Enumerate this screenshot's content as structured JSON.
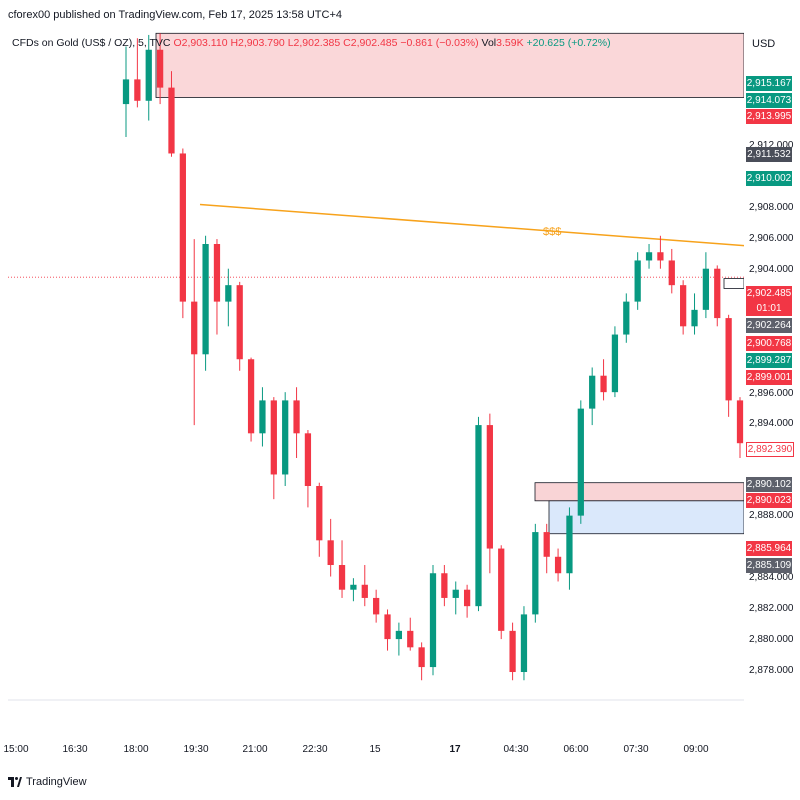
{
  "publisher_line": "cforex00 published on TradingView.com, Feb 17, 2025 13:58 UTC+4",
  "header": {
    "symbol": "CFDs on Gold (US$ / OZ), 5, TVC",
    "open": "O2,903.110",
    "high": "H2,903.790",
    "low": "L2,902.385",
    "close": "C2,902.485",
    "change": "−0.861 (−0.03%)",
    "volume_label": "Vol",
    "volume": "3.59K",
    "vol_change": "+20.625 (+0.72%)"
  },
  "currency": "USD",
  "annotation_text": "$$$",
  "price_axis_ticks": [
    "2,912.000",
    "2,908.000",
    "2,906.000",
    "2,904.000",
    "2,896.000",
    "2,894.000",
    "2,888.000",
    "2,884.000",
    "2,882.000",
    "2,880.000",
    "2,878.000"
  ],
  "price_labels": [
    {
      "text": "2,915.167",
      "color": "#089981"
    },
    {
      "text": "2,914.073",
      "color": "#089981"
    },
    {
      "text": "2,913.995",
      "color": "#f23645"
    },
    {
      "text": "2,911.532",
      "color": "#4a4e59"
    },
    {
      "text": "2,910.002",
      "color": "#089981"
    },
    {
      "text": "2,902.485",
      "color": "#f23645"
    },
    {
      "text": "01:01",
      "color": "#f23645"
    },
    {
      "text": "2,902.264",
      "color": "#5d606b"
    },
    {
      "text": "2,900.768",
      "color": "#f23645"
    },
    {
      "text": "2,899.287",
      "color": "#089981"
    },
    {
      "text": "2,899.001",
      "color": "#f23645"
    },
    {
      "text": "2,892.390",
      "color": "#ffffff"
    },
    {
      "text": "2,890.102",
      "color": "#5d606b"
    },
    {
      "text": "2,890.023",
      "color": "#f23645"
    },
    {
      "text": "2,885.964",
      "color": "#f23645"
    },
    {
      "text": "2,885.109",
      "color": "#5d606b"
    }
  ],
  "time_ticks": [
    "15:00",
    "16:30",
    "18:00",
    "19:30",
    "21:00",
    "22:30",
    "15",
    "17",
    "04:30",
    "06:00",
    "07:30",
    "09:00"
  ],
  "brand": "TradingView",
  "colors": {
    "up": "#089981",
    "down": "#f23645",
    "trendline": "#f7a21b",
    "supply_zone": "#f8c9cc",
    "demand_zone": "#d6e6fb"
  },
  "chart_data": {
    "type": "candlestick",
    "ylim": [
      2876.8,
      2917.5
    ],
    "bars": [
      {
        "o": 2913.0,
        "h": 2916.5,
        "l": 2911.0,
        "c": 2914.5
      },
      {
        "o": 2914.5,
        "h": 2917.0,
        "l": 2912.8,
        "c": 2913.2
      },
      {
        "o": 2913.2,
        "h": 2917.2,
        "l": 2912.0,
        "c": 2916.3
      },
      {
        "o": 2916.3,
        "h": 2917.3,
        "l": 2913.0,
        "c": 2914.0
      },
      {
        "o": 2914.0,
        "h": 2915.0,
        "l": 2909.8,
        "c": 2910.0
      },
      {
        "o": 2910.0,
        "h": 2910.3,
        "l": 2900.0,
        "c": 2901.0
      },
      {
        "o": 2901.0,
        "h": 2904.8,
        "l": 2893.5,
        "c": 2897.8
      },
      {
        "o": 2897.8,
        "h": 2905.0,
        "l": 2896.8,
        "c": 2904.5
      },
      {
        "o": 2904.5,
        "h": 2904.8,
        "l": 2899.0,
        "c": 2901.0
      },
      {
        "o": 2901.0,
        "h": 2903.0,
        "l": 2899.5,
        "c": 2902.0
      },
      {
        "o": 2902.0,
        "h": 2902.2,
        "l": 2896.8,
        "c": 2897.5
      },
      {
        "o": 2897.5,
        "h": 2897.6,
        "l": 2892.5,
        "c": 2893.0
      },
      {
        "o": 2893.0,
        "h": 2895.8,
        "l": 2892.2,
        "c": 2895.0
      },
      {
        "o": 2895.0,
        "h": 2895.2,
        "l": 2889.0,
        "c": 2890.5
      },
      {
        "o": 2890.5,
        "h": 2895.5,
        "l": 2889.8,
        "c": 2895.0
      },
      {
        "o": 2895.0,
        "h": 2895.8,
        "l": 2891.5,
        "c": 2893.0
      },
      {
        "o": 2893.0,
        "h": 2893.2,
        "l": 2888.5,
        "c": 2889.8
      },
      {
        "o": 2889.8,
        "h": 2890.0,
        "l": 2885.5,
        "c": 2886.5
      },
      {
        "o": 2886.5,
        "h": 2887.8,
        "l": 2884.3,
        "c": 2885.0
      },
      {
        "o": 2885.0,
        "h": 2886.5,
        "l": 2883.0,
        "c": 2883.5
      },
      {
        "o": 2883.5,
        "h": 2884.2,
        "l": 2882.8,
        "c": 2883.8
      },
      {
        "o": 2883.8,
        "h": 2885.0,
        "l": 2882.5,
        "c": 2883.0
      },
      {
        "o": 2883.0,
        "h": 2883.5,
        "l": 2881.5,
        "c": 2882.0
      },
      {
        "o": 2882.0,
        "h": 2882.3,
        "l": 2879.8,
        "c": 2880.5
      },
      {
        "o": 2880.5,
        "h": 2881.5,
        "l": 2879.5,
        "c": 2881.0
      },
      {
        "o": 2881.0,
        "h": 2881.8,
        "l": 2879.8,
        "c": 2880.0
      },
      {
        "o": 2880.0,
        "h": 2880.3,
        "l": 2878.0,
        "c": 2878.8
      },
      {
        "o": 2878.8,
        "h": 2885.0,
        "l": 2878.3,
        "c": 2884.5
      },
      {
        "o": 2884.5,
        "h": 2885.0,
        "l": 2882.5,
        "c": 2883.0
      },
      {
        "o": 2883.0,
        "h": 2884.0,
        "l": 2882.0,
        "c": 2883.5
      },
      {
        "o": 2883.5,
        "h": 2883.8,
        "l": 2881.8,
        "c": 2882.5
      },
      {
        "o": 2882.5,
        "h": 2894.0,
        "l": 2882.2,
        "c": 2893.5
      },
      {
        "o": 2893.5,
        "h": 2894.2,
        "l": 2884.5,
        "c": 2886.0
      },
      {
        "o": 2886.0,
        "h": 2886.2,
        "l": 2880.5,
        "c": 2881.0
      },
      {
        "o": 2881.0,
        "h": 2881.5,
        "l": 2878.0,
        "c": 2878.5
      },
      {
        "o": 2878.5,
        "h": 2882.5,
        "l": 2878.0,
        "c": 2882.0
      },
      {
        "o": 2882.0,
        "h": 2887.5,
        "l": 2881.5,
        "c": 2887.0
      },
      {
        "o": 2887.0,
        "h": 2887.5,
        "l": 2884.5,
        "c": 2885.5
      },
      {
        "o": 2885.5,
        "h": 2886.0,
        "l": 2884.0,
        "c": 2884.5
      },
      {
        "o": 2884.5,
        "h": 2888.5,
        "l": 2883.5,
        "c": 2888.0
      },
      {
        "o": 2888.0,
        "h": 2895.0,
        "l": 2887.5,
        "c": 2894.5
      },
      {
        "o": 2894.5,
        "h": 2897.0,
        "l": 2893.5,
        "c": 2896.5
      },
      {
        "o": 2896.5,
        "h": 2897.5,
        "l": 2895.0,
        "c": 2895.5
      },
      {
        "o": 2895.5,
        "h": 2899.5,
        "l": 2895.2,
        "c": 2899.0
      },
      {
        "o": 2899.0,
        "h": 2901.5,
        "l": 2898.5,
        "c": 2901.0
      },
      {
        "o": 2901.0,
        "h": 2904.0,
        "l": 2900.5,
        "c": 2903.5
      },
      {
        "o": 2903.5,
        "h": 2904.5,
        "l": 2903.0,
        "c": 2904.0
      },
      {
        "o": 2904.0,
        "h": 2905.0,
        "l": 2903.0,
        "c": 2903.5
      },
      {
        "o": 2903.5,
        "h": 2904.2,
        "l": 2901.5,
        "c": 2902.0
      },
      {
        "o": 2902.0,
        "h": 2902.3,
        "l": 2899.0,
        "c": 2899.5
      },
      {
        "o": 2899.5,
        "h": 2901.5,
        "l": 2899.0,
        "c": 2900.5
      },
      {
        "o": 2900.5,
        "h": 2904.0,
        "l": 2900.0,
        "c": 2903.0
      },
      {
        "o": 2903.0,
        "h": 2903.2,
        "l": 2899.5,
        "c": 2900.0
      },
      {
        "o": 2900.0,
        "h": 2900.2,
        "l": 2894.0,
        "c": 2895.0
      },
      {
        "o": 2895.0,
        "h": 2895.2,
        "l": 2891.5,
        "c": 2892.4
      }
    ]
  }
}
